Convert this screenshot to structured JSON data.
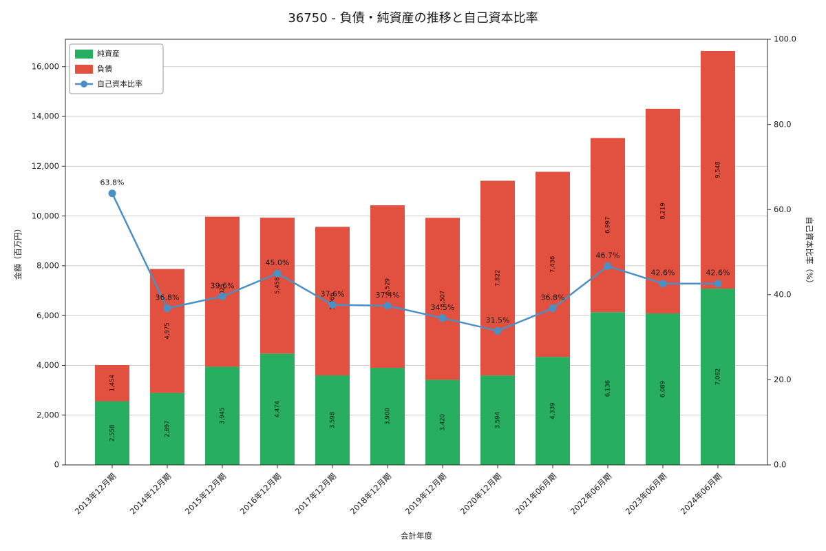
{
  "title": "36750 - 負債・純資産の推移と自己資本比率",
  "chart_data": {
    "type": "bar",
    "stacked": true,
    "title": "36750 - 負債・純資産の推移と自己資本比率",
    "xlabel": "会計年度",
    "ylabel_left": "金額（百万円）",
    "ylabel_right": "自己資本比率（%）",
    "categories": [
      "2013年12月期",
      "2014年12月期",
      "2015年12月期",
      "2016年12月期",
      "2017年12月期",
      "2018年12月期",
      "2019年12月期",
      "2020年12月期",
      "2021年06月期",
      "2022年06月期",
      "2023年06月期",
      "2024年06月期"
    ],
    "series": [
      {
        "name": "純資産",
        "color": "#27ae60",
        "values": [
          2558,
          2897,
          3945,
          4474,
          3598,
          3900,
          3420,
          3594,
          4339,
          6136,
          6089,
          7082
        ]
      },
      {
        "name": "負債",
        "color": "#e2513f",
        "values": [
          1454,
          4975,
          6025,
          5458,
          5966,
          6529,
          6507,
          7822,
          7436,
          6997,
          8219,
          9548
        ]
      }
    ],
    "line_series": {
      "name": "自己資本比率",
      "color": "#4a90c4",
      "values": [
        63.8,
        36.8,
        39.6,
        45.0,
        37.6,
        37.4,
        34.5,
        31.5,
        36.8,
        46.7,
        42.6,
        42.6
      ],
      "point_labels": [
        "63.8%",
        "36.8%",
        "39.6%",
        "45.0%",
        "37.6%",
        "37.4%",
        "34.5%",
        "31.5%",
        "36.8%",
        "46.7%",
        "42.6%",
        "42.6%"
      ]
    },
    "legend": [
      "純資産",
      "負債",
      "自己資本比率"
    ],
    "ylim_left": [
      0,
      17100
    ],
    "ylim_right": [
      0,
      100
    ],
    "yticks_left": [
      0,
      2000,
      4000,
      6000,
      8000,
      10000,
      12000,
      14000,
      16000
    ],
    "yticks_right": [
      0,
      20,
      40,
      60,
      80,
      100
    ],
    "grid": true,
    "grid_color": "#cccccc",
    "legend_position": "upper-left"
  }
}
